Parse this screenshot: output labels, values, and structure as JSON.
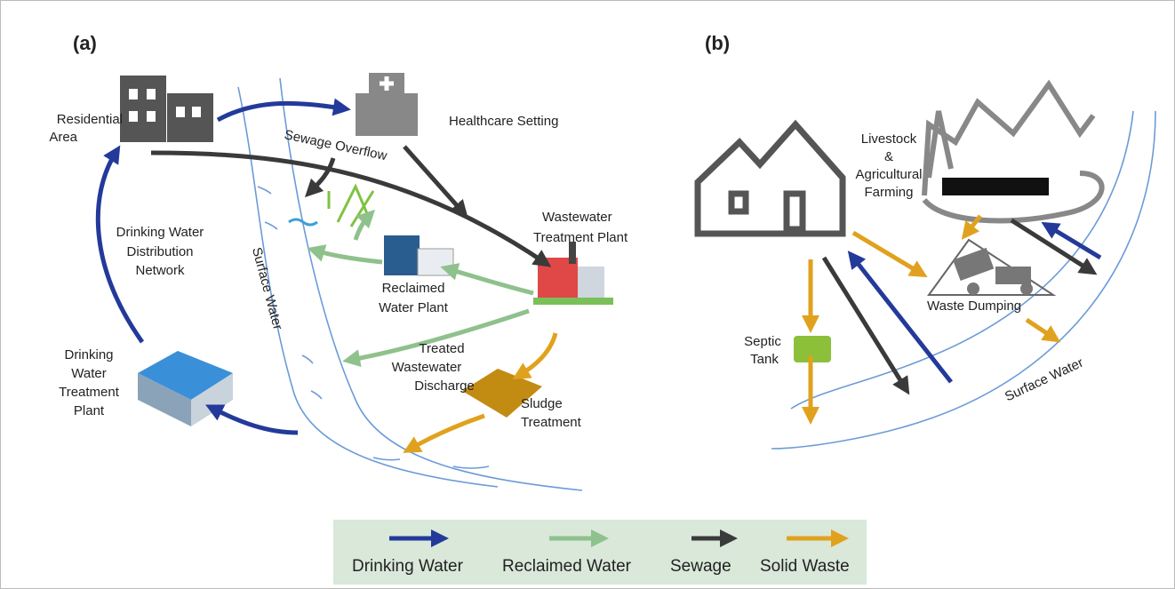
{
  "panel_a": {
    "tag": "(a)",
    "residential_area": [
      "Residential",
      "Area"
    ],
    "healthcare_setting": "Healthcare Setting",
    "sewage_overflow": "Sewage Overflow",
    "wastewater_treatment_plant": [
      "Wastewater",
      "Treatment Plant"
    ],
    "drinking_water_distribution_network": [
      "Drinking Water",
      "Distribution",
      "Network"
    ],
    "surface_water": "Surface Water",
    "reclaimed_water_plant": [
      "Reclaimed",
      "Water Plant"
    ],
    "treated_wastewater_discharge": [
      "Treated",
      "Wastewater",
      "Discharge"
    ],
    "sludge_treatment": [
      "Sludge",
      "Treatment"
    ],
    "drinking_water_treatment_plant": [
      "Drinking",
      "Water",
      "Treatment",
      "Plant"
    ]
  },
  "panel_b": {
    "tag": "(b)",
    "livestock_farming": [
      "Livestock",
      "&",
      "Agricultural",
      "Farming"
    ],
    "waste_dumping": "Waste Dumping",
    "septic_tank": [
      "Septic",
      "Tank"
    ],
    "surface_water": "Surface Water"
  },
  "legend": {
    "items": [
      {
        "label": "Drinking Water",
        "color": "#233a9a"
      },
      {
        "label": "Reclaimed Water",
        "color": "#8fc18c"
      },
      {
        "label": "Sewage",
        "color": "#3a3a3a"
      },
      {
        "label": "Solid Waste",
        "color": "#e0a21e"
      }
    ]
  }
}
